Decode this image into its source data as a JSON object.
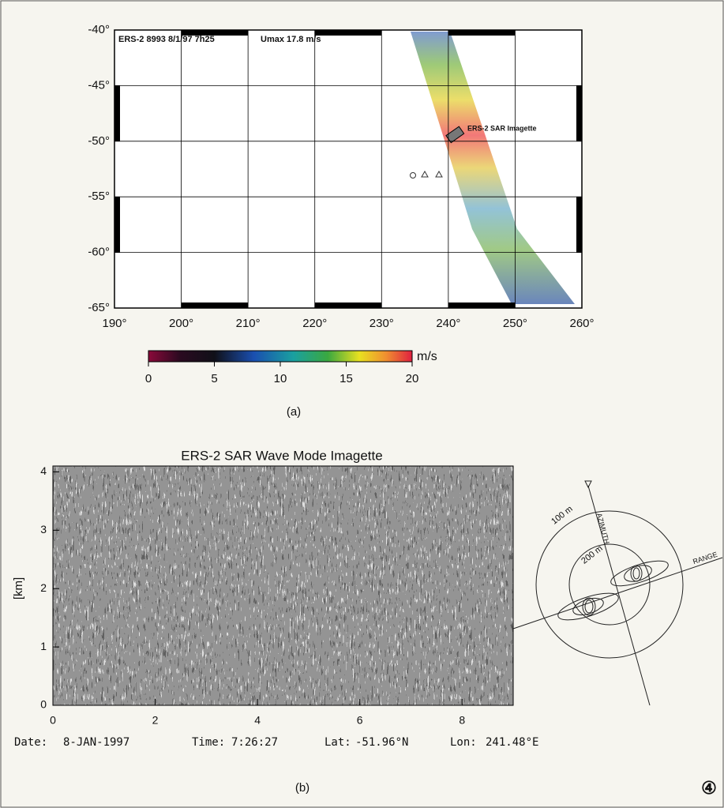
{
  "panel_a": {
    "header": "ERS-2 8993 8/1/97 7h25",
    "umax": "Umax 17.8 m/s",
    "annotation": "ERS-2 SAR Imagette",
    "xlim": [
      190,
      260
    ],
    "ylim": [
      -40,
      -65
    ],
    "xticks": [
      {
        "value": 190,
        "label": "190°"
      },
      {
        "value": 200,
        "label": "200°"
      },
      {
        "value": 210,
        "label": "210°"
      },
      {
        "value": 220,
        "label": "220°"
      },
      {
        "value": 230,
        "label": "230°"
      },
      {
        "value": 240,
        "label": "240°"
      },
      {
        "value": 250,
        "label": "250°"
      },
      {
        "value": 260,
        "label": "260°"
      }
    ],
    "yticks": [
      {
        "value": -40,
        "label": "-40°"
      },
      {
        "value": -45,
        "label": "-45°"
      },
      {
        "value": -50,
        "label": "-50°"
      },
      {
        "value": -55,
        "label": "-55°"
      },
      {
        "value": -60,
        "label": "-60°"
      },
      {
        "value": -65,
        "label": "-65°"
      }
    ],
    "colorbar": {
      "lim": [
        0,
        20
      ],
      "ticks": [
        0,
        5,
        10,
        15,
        20
      ],
      "unit": "m/s"
    },
    "caption": "(a)"
  },
  "panel_b": {
    "title": "ERS-2 SAR Wave Mode Imagette",
    "ylabel": "[km]",
    "xlim": [
      0,
      9
    ],
    "ylim": [
      0,
      4.1
    ],
    "xticks": [
      0,
      2,
      4,
      6,
      8
    ],
    "yticks": [
      0,
      1,
      2,
      3,
      4
    ],
    "info": {
      "date_label": "Date:",
      "date": "8-JAN-1997",
      "time_label": "Time:",
      "time": "7:26:27",
      "lat_label": "Lat:",
      "lat": "-51.96°N",
      "lon_label": "Lon:",
      "lon": "241.48°E"
    },
    "spectrum": {
      "inner_ring": "100 m",
      "outer_ring": "200 m",
      "azimuth": "AZIMUTH",
      "range": "RANGE"
    },
    "caption": "(b)"
  },
  "page_number": "④"
}
